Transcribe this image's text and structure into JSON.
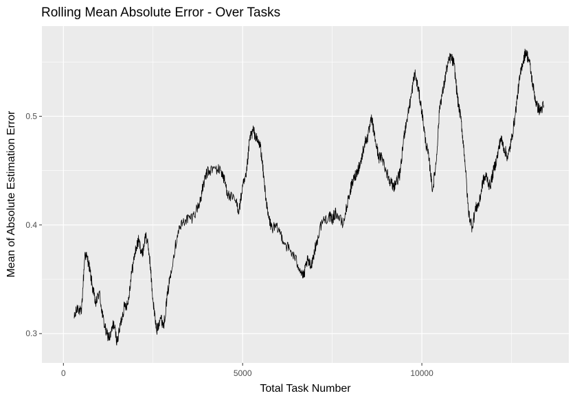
{
  "chart_data": {
    "type": "line",
    "title": "Rolling Mean Absolute Error - Over Tasks",
    "xlabel": "Total Task Number",
    "ylabel": "Mean of Absolute Estimation Error",
    "xlim": [
      -600,
      14100
    ],
    "ylim": [
      0.273,
      0.583
    ],
    "x_ticks": [
      0,
      5000,
      10000
    ],
    "x_tick_labels": [
      "0",
      "5000",
      "10000"
    ],
    "y_ticks": [
      0.3,
      0.4,
      0.5
    ],
    "y_tick_labels": [
      "0.3",
      "0.4",
      "0.5"
    ],
    "grid": true,
    "legend": "none",
    "colors": {
      "panel": "#ebebeb",
      "grid": "#ffffff",
      "line": "#000000",
      "tick_text": "#4d4d4d",
      "tick_mark": "#333333"
    },
    "series": [
      {
        "x": [
          300,
          400,
          500,
          600,
          700,
          800,
          900,
          1000,
          1100,
          1200,
          1300,
          1400,
          1500,
          1600,
          1700,
          1800,
          1900,
          2000,
          2100,
          2200,
          2300,
          2400,
          2500,
          2600,
          2700,
          2800,
          2900,
          3000,
          3200,
          3400,
          3600,
          3800,
          3900,
          4000,
          4200,
          4400,
          4500,
          4600,
          4800,
          4900,
          5000,
          5100,
          5200,
          5300,
          5400,
          5500,
          5600,
          5700,
          5800,
          6000,
          6200,
          6400,
          6600,
          6700,
          6800,
          6900,
          7000,
          7200,
          7400,
          7500,
          7600,
          7800,
          8000,
          8100,
          8200,
          8300,
          8400,
          8500,
          8600,
          8700,
          8800,
          8900,
          9000,
          9100,
          9200,
          9300,
          9400,
          9500,
          9600,
          9700,
          9800,
          9900,
          10000,
          10100,
          10200,
          10300,
          10400,
          10500,
          10600,
          10700,
          10800,
          10900,
          11000,
          11100,
          11200,
          11300,
          11400,
          11500,
          11600,
          11700,
          11800,
          11900,
          12000,
          12100,
          12200,
          12300,
          12400,
          12500,
          12600,
          12700,
          12800,
          12900,
          13000,
          13100,
          13200,
          13300,
          13400
        ],
        "y": [
          0.314,
          0.325,
          0.318,
          0.374,
          0.366,
          0.345,
          0.327,
          0.338,
          0.315,
          0.3,
          0.296,
          0.31,
          0.292,
          0.31,
          0.325,
          0.328,
          0.355,
          0.375,
          0.386,
          0.372,
          0.392,
          0.372,
          0.33,
          0.302,
          0.315,
          0.308,
          0.335,
          0.358,
          0.395,
          0.405,
          0.407,
          0.42,
          0.436,
          0.448,
          0.452,
          0.45,
          0.44,
          0.427,
          0.422,
          0.413,
          0.435,
          0.444,
          0.48,
          0.487,
          0.478,
          0.472,
          0.44,
          0.41,
          0.398,
          0.396,
          0.382,
          0.373,
          0.36,
          0.352,
          0.367,
          0.362,
          0.375,
          0.402,
          0.408,
          0.405,
          0.412,
          0.4,
          0.432,
          0.442,
          0.45,
          0.458,
          0.475,
          0.482,
          0.498,
          0.478,
          0.462,
          0.462,
          0.45,
          0.442,
          0.435,
          0.44,
          0.448,
          0.482,
          0.5,
          0.518,
          0.54,
          0.525,
          0.505,
          0.478,
          0.46,
          0.432,
          0.458,
          0.51,
          0.525,
          0.545,
          0.555,
          0.548,
          0.515,
          0.495,
          0.46,
          0.412,
          0.398,
          0.415,
          0.42,
          0.44,
          0.445,
          0.435,
          0.45,
          0.462,
          0.48,
          0.47,
          0.462,
          0.478,
          0.5,
          0.528,
          0.548,
          0.56,
          0.55,
          0.528,
          0.51,
          0.505,
          0.51
        ]
      }
    ]
  }
}
